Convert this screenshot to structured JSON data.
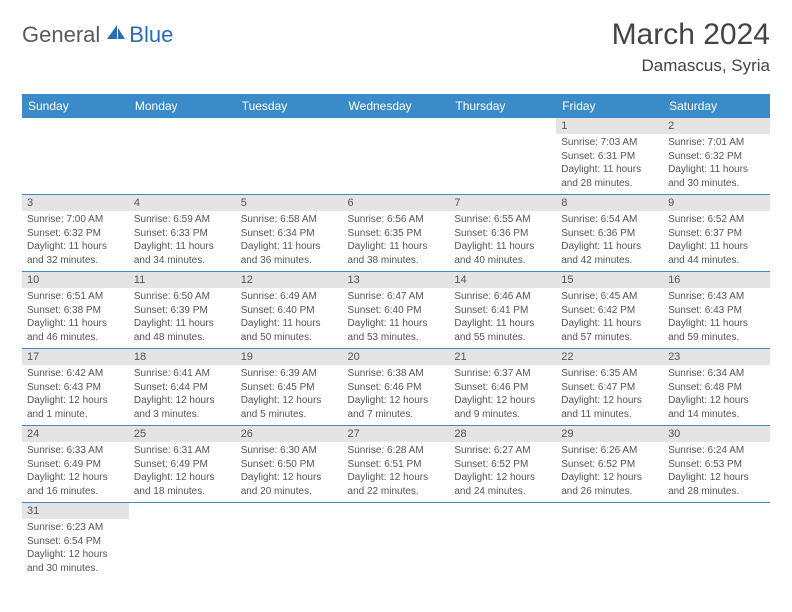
{
  "brand": {
    "name1": "General",
    "name2": "Blue"
  },
  "title": "March 2024",
  "location": "Damascus, Syria",
  "colors": {
    "header_bg": "#3b8bc9",
    "header_fg": "#ffffff",
    "daynum_bg": "#e4e4e4",
    "border": "#3b8bc9",
    "text": "#555555"
  },
  "weekdays": [
    "Sunday",
    "Monday",
    "Tuesday",
    "Wednesday",
    "Thursday",
    "Friday",
    "Saturday"
  ],
  "weeks": [
    [
      null,
      null,
      null,
      null,
      null,
      {
        "n": "1",
        "sr": "Sunrise: 7:03 AM",
        "ss": "Sunset: 6:31 PM",
        "dl": "Daylight: 11 hours and 28 minutes."
      },
      {
        "n": "2",
        "sr": "Sunrise: 7:01 AM",
        "ss": "Sunset: 6:32 PM",
        "dl": "Daylight: 11 hours and 30 minutes."
      }
    ],
    [
      {
        "n": "3",
        "sr": "Sunrise: 7:00 AM",
        "ss": "Sunset: 6:32 PM",
        "dl": "Daylight: 11 hours and 32 minutes."
      },
      {
        "n": "4",
        "sr": "Sunrise: 6:59 AM",
        "ss": "Sunset: 6:33 PM",
        "dl": "Daylight: 11 hours and 34 minutes."
      },
      {
        "n": "5",
        "sr": "Sunrise: 6:58 AM",
        "ss": "Sunset: 6:34 PM",
        "dl": "Daylight: 11 hours and 36 minutes."
      },
      {
        "n": "6",
        "sr": "Sunrise: 6:56 AM",
        "ss": "Sunset: 6:35 PM",
        "dl": "Daylight: 11 hours and 38 minutes."
      },
      {
        "n": "7",
        "sr": "Sunrise: 6:55 AM",
        "ss": "Sunset: 6:36 PM",
        "dl": "Daylight: 11 hours and 40 minutes."
      },
      {
        "n": "8",
        "sr": "Sunrise: 6:54 AM",
        "ss": "Sunset: 6:36 PM",
        "dl": "Daylight: 11 hours and 42 minutes."
      },
      {
        "n": "9",
        "sr": "Sunrise: 6:52 AM",
        "ss": "Sunset: 6:37 PM",
        "dl": "Daylight: 11 hours and 44 minutes."
      }
    ],
    [
      {
        "n": "10",
        "sr": "Sunrise: 6:51 AM",
        "ss": "Sunset: 6:38 PM",
        "dl": "Daylight: 11 hours and 46 minutes."
      },
      {
        "n": "11",
        "sr": "Sunrise: 6:50 AM",
        "ss": "Sunset: 6:39 PM",
        "dl": "Daylight: 11 hours and 48 minutes."
      },
      {
        "n": "12",
        "sr": "Sunrise: 6:49 AM",
        "ss": "Sunset: 6:40 PM",
        "dl": "Daylight: 11 hours and 50 minutes."
      },
      {
        "n": "13",
        "sr": "Sunrise: 6:47 AM",
        "ss": "Sunset: 6:40 PM",
        "dl": "Daylight: 11 hours and 53 minutes."
      },
      {
        "n": "14",
        "sr": "Sunrise: 6:46 AM",
        "ss": "Sunset: 6:41 PM",
        "dl": "Daylight: 11 hours and 55 minutes."
      },
      {
        "n": "15",
        "sr": "Sunrise: 6:45 AM",
        "ss": "Sunset: 6:42 PM",
        "dl": "Daylight: 11 hours and 57 minutes."
      },
      {
        "n": "16",
        "sr": "Sunrise: 6:43 AM",
        "ss": "Sunset: 6:43 PM",
        "dl": "Daylight: 11 hours and 59 minutes."
      }
    ],
    [
      {
        "n": "17",
        "sr": "Sunrise: 6:42 AM",
        "ss": "Sunset: 6:43 PM",
        "dl": "Daylight: 12 hours and 1 minute."
      },
      {
        "n": "18",
        "sr": "Sunrise: 6:41 AM",
        "ss": "Sunset: 6:44 PM",
        "dl": "Daylight: 12 hours and 3 minutes."
      },
      {
        "n": "19",
        "sr": "Sunrise: 6:39 AM",
        "ss": "Sunset: 6:45 PM",
        "dl": "Daylight: 12 hours and 5 minutes."
      },
      {
        "n": "20",
        "sr": "Sunrise: 6:38 AM",
        "ss": "Sunset: 6:46 PM",
        "dl": "Daylight: 12 hours and 7 minutes."
      },
      {
        "n": "21",
        "sr": "Sunrise: 6:37 AM",
        "ss": "Sunset: 6:46 PM",
        "dl": "Daylight: 12 hours and 9 minutes."
      },
      {
        "n": "22",
        "sr": "Sunrise: 6:35 AM",
        "ss": "Sunset: 6:47 PM",
        "dl": "Daylight: 12 hours and 11 minutes."
      },
      {
        "n": "23",
        "sr": "Sunrise: 6:34 AM",
        "ss": "Sunset: 6:48 PM",
        "dl": "Daylight: 12 hours and 14 minutes."
      }
    ],
    [
      {
        "n": "24",
        "sr": "Sunrise: 6:33 AM",
        "ss": "Sunset: 6:49 PM",
        "dl": "Daylight: 12 hours and 16 minutes."
      },
      {
        "n": "25",
        "sr": "Sunrise: 6:31 AM",
        "ss": "Sunset: 6:49 PM",
        "dl": "Daylight: 12 hours and 18 minutes."
      },
      {
        "n": "26",
        "sr": "Sunrise: 6:30 AM",
        "ss": "Sunset: 6:50 PM",
        "dl": "Daylight: 12 hours and 20 minutes."
      },
      {
        "n": "27",
        "sr": "Sunrise: 6:28 AM",
        "ss": "Sunset: 6:51 PM",
        "dl": "Daylight: 12 hours and 22 minutes."
      },
      {
        "n": "28",
        "sr": "Sunrise: 6:27 AM",
        "ss": "Sunset: 6:52 PM",
        "dl": "Daylight: 12 hours and 24 minutes."
      },
      {
        "n": "29",
        "sr": "Sunrise: 6:26 AM",
        "ss": "Sunset: 6:52 PM",
        "dl": "Daylight: 12 hours and 26 minutes."
      },
      {
        "n": "30",
        "sr": "Sunrise: 6:24 AM",
        "ss": "Sunset: 6:53 PM",
        "dl": "Daylight: 12 hours and 28 minutes."
      }
    ],
    [
      {
        "n": "31",
        "sr": "Sunrise: 6:23 AM",
        "ss": "Sunset: 6:54 PM",
        "dl": "Daylight: 12 hours and 30 minutes."
      },
      null,
      null,
      null,
      null,
      null,
      null
    ]
  ]
}
